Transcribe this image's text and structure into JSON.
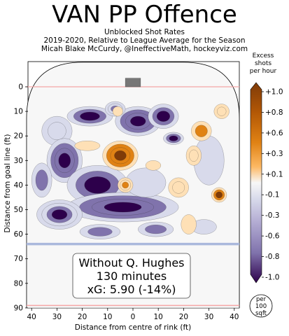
{
  "header": {
    "title": "VAN PP Offence",
    "subtitle_1": "Unblocked Shot Rates",
    "subtitle_2": "2019-2020, Relative to League Average for the Season",
    "subtitle_3": "Micah Blake McCurdy, @IneffectiveMath, hockeyviz.com"
  },
  "chart_data": {
    "type": "heatmap",
    "xlabel": "Distance from centre of rink (ft)",
    "ylabel": "Distance from goal line (ft)",
    "xlim": [
      -42,
      42
    ],
    "ylim": [
      0,
      90
    ],
    "x_ticks": [
      "40",
      "30",
      "20",
      "10",
      "0",
      "10",
      "20",
      "30",
      "40"
    ],
    "y_ticks": [
      "0",
      "10",
      "20",
      "30",
      "40",
      "50",
      "60",
      "70",
      "80",
      "90"
    ],
    "colorbar": {
      "title_lines": [
        "Excess",
        "shots",
        "per hour"
      ],
      "ticks": [
        "+1.0",
        "+0.8",
        "+0.6",
        "+0.3",
        "+0.1",
        "-0.1",
        "-0.3",
        "-0.6",
        "-0.8",
        "-1.0"
      ],
      "unit_lines": [
        "per",
        "100",
        "sqft"
      ]
    },
    "info_box": {
      "line1": "Without Q. Hughes",
      "line2": "130 minutes",
      "line3": "xG: 5.90 (-14%)"
    },
    "colors": {
      "positive_strong": "#7f3b08",
      "positive_mid": "#e08214",
      "positive_light": "#fee0b6",
      "neutral": "#f7f7f7",
      "negative_light": "#d8daeb",
      "negative_mid": "#8073ac",
      "negative_strong": "#2d004b",
      "goal_line": "#f4a6a6",
      "blue_line": "#aab8dc"
    },
    "blobs": [
      {
        "x": 2,
        "y": 14,
        "rx": 9,
        "ry": 6,
        "v": -1.0
      },
      {
        "x": 12,
        "y": 12,
        "rx": 6,
        "ry": 5,
        "v": -0.8
      },
      {
        "x": -17,
        "y": 12,
        "rx": 9,
        "ry": 4,
        "v": -0.8
      },
      {
        "x": -7,
        "y": 9,
        "rx": 4,
        "ry": 3,
        "v": -0.7
      },
      {
        "x": 16,
        "y": 21,
        "rx": 4,
        "ry": 2.5,
        "v": -0.8
      },
      {
        "x": -30,
        "y": 18,
        "rx": 6,
        "ry": 6,
        "v": -0.4
      },
      {
        "x": -27,
        "y": 30,
        "rx": 7,
        "ry": 9,
        "v": -1.0
      },
      {
        "x": -14,
        "y": 40,
        "rx": 12,
        "ry": 8,
        "v": -0.8
      },
      {
        "x": -4,
        "y": 49,
        "rx": 22,
        "ry": 6,
        "v": -1.0
      },
      {
        "x": -29,
        "y": 52,
        "rx": 9,
        "ry": 6,
        "v": -0.9
      },
      {
        "x": -13,
        "y": 59,
        "rx": 8,
        "ry": 3,
        "v": -0.6
      },
      {
        "x": 9,
        "y": 58,
        "rx": 7,
        "ry": 3,
        "v": -0.5
      },
      {
        "x": 28,
        "y": 57,
        "rx": 5,
        "ry": 3,
        "v": -0.3
      },
      {
        "x": 5,
        "y": 39,
        "rx": 8,
        "ry": 6,
        "v": -0.3
      },
      {
        "x": -36,
        "y": 38,
        "rx": 4,
        "ry": 7,
        "v": -0.5
      },
      {
        "x": 30,
        "y": 30,
        "rx": 6,
        "ry": 10,
        "v": -0.2
      },
      {
        "x": -5,
        "y": 28,
        "rx": 7,
        "ry": 6,
        "v": 1.0
      },
      {
        "x": -3,
        "y": 40,
        "rx": 3,
        "ry": 3,
        "v": 0.7
      },
      {
        "x": 27,
        "y": 18,
        "rx": 4,
        "ry": 4,
        "v": 0.6
      },
      {
        "x": 24,
        "y": 28,
        "rx": 3,
        "ry": 4,
        "v": 0.4
      },
      {
        "x": 35,
        "y": 10,
        "rx": 3,
        "ry": 3,
        "v": 0.4
      },
      {
        "x": 34,
        "y": 44,
        "rx": 3,
        "ry": 3,
        "v": 0.8
      },
      {
        "x": 18,
        "y": 41,
        "rx": 4,
        "ry": 4,
        "v": 0.4
      },
      {
        "x": 8,
        "y": 32,
        "rx": 3,
        "ry": 2,
        "v": 0.3
      },
      {
        "x": -6,
        "y": 10,
        "rx": 2,
        "ry": 2,
        "v": 0.2
      },
      {
        "x": 22,
        "y": 56,
        "rx": 3,
        "ry": 4,
        "v": 0.3
      },
      {
        "x": -18,
        "y": 24,
        "rx": 5,
        "ry": 2,
        "v": 0.2
      }
    ]
  }
}
